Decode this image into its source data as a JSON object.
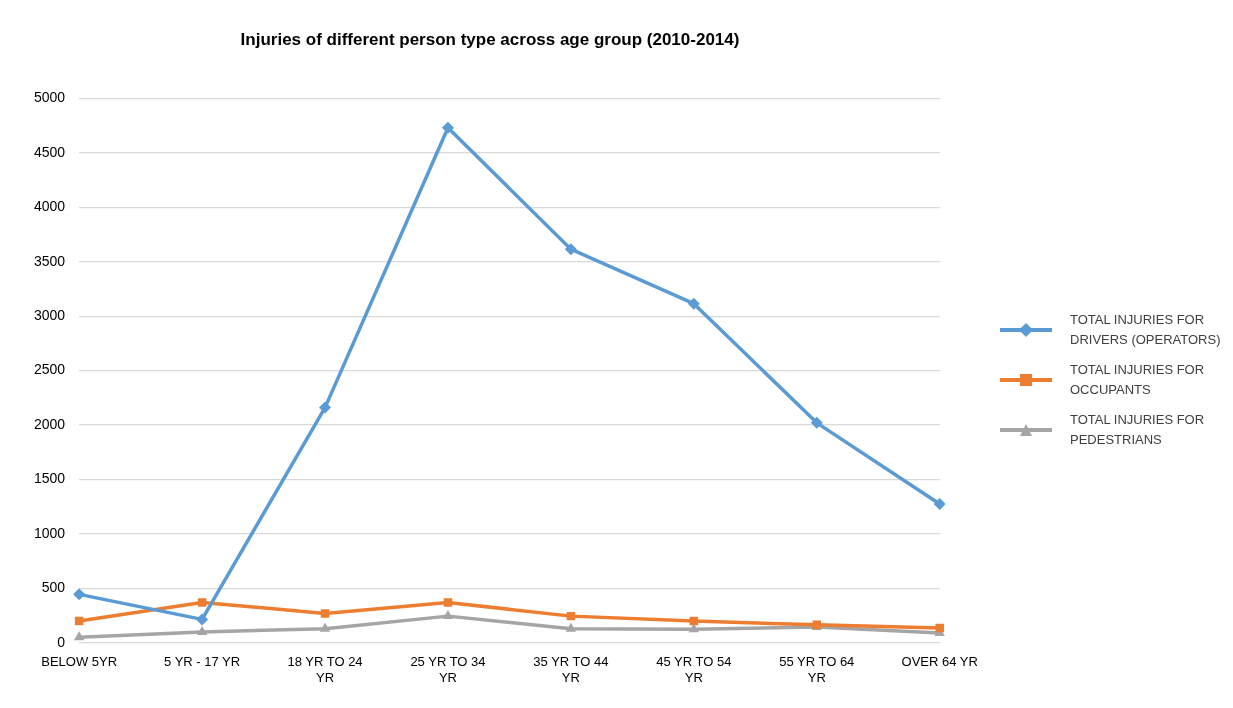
{
  "chart_data": {
    "type": "line",
    "title": "Injuries of different person type across age group (2010-2014)",
    "categories": [
      "BELOW 5YR",
      "5 YR - 17 YR",
      "18 YR TO 24 YR",
      "25 YR TO 34 YR",
      "35 YR TO 44 YR",
      "45 YR TO 54 YR",
      "55 YR TO 64 YR",
      "OVER 64 YR"
    ],
    "series": [
      {
        "name": "TOTAL INJURIES FOR DRIVERS (OPERATORS)",
        "color": "#5b9bd5",
        "marker": "diamond",
        "values": [
          445,
          215,
          2160,
          4730,
          3615,
          3115,
          2020,
          1275
        ]
      },
      {
        "name": "TOTAL INJURIES FOR OCCUPANTS",
        "color": "#ed7d31",
        "marker": "square",
        "values": [
          200,
          370,
          270,
          370,
          245,
          200,
          165,
          135
        ]
      },
      {
        "name": "TOTAL INJURIES FOR PEDESTRIANS",
        "color": "#a5a5a5",
        "marker": "triangle",
        "values": [
          50,
          100,
          130,
          245,
          130,
          125,
          145,
          90
        ]
      }
    ],
    "ylim": [
      0,
      5000
    ],
    "yticks": [
      0,
      500,
      1000,
      1500,
      2000,
      2500,
      3000,
      3500,
      4000,
      4500,
      5000
    ],
    "grid": "y",
    "legend": "right",
    "line_style": "solid"
  }
}
